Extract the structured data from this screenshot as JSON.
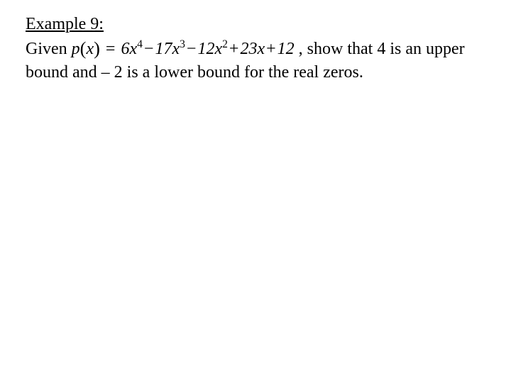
{
  "example": {
    "heading": "Example 9:",
    "lead": "Given ",
    "formula": {
      "fn": "p",
      "of": "x",
      "terms": [
        {
          "coef": "6",
          "var": "x",
          "exp": "4",
          "sign": ""
        },
        {
          "coef": "17",
          "var": "x",
          "exp": "3",
          "sign": "−"
        },
        {
          "coef": "12",
          "var": "x",
          "exp": "2",
          "sign": "−"
        },
        {
          "coef": "23",
          "var": "x",
          "exp": "",
          "sign": "+"
        },
        {
          "coef": "12",
          "var": "",
          "exp": "",
          "sign": "+"
        }
      ]
    },
    "tail": " , show that 4 is an upper bound and – 2 is a lower bound for the real zeros."
  }
}
